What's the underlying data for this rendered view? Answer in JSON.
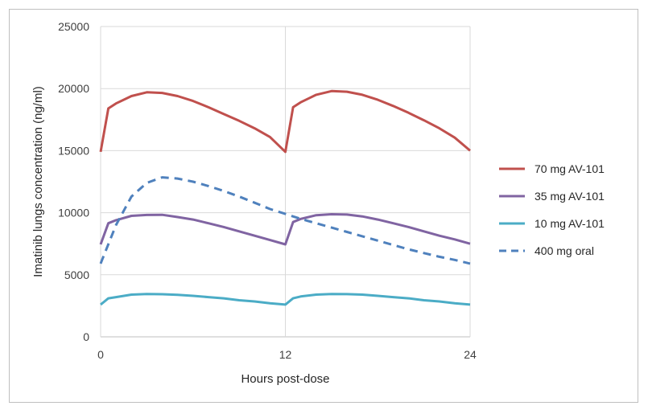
{
  "chart_data": {
    "type": "line",
    "title": "",
    "xlabel": "Hours post-dose",
    "ylabel": "Imatinib lungs concentration (ng/ml)",
    "xlim": [
      0,
      24
    ],
    "ylim": [
      0,
      25000
    ],
    "x_ticks": [
      "0",
      "12",
      "24"
    ],
    "y_ticks": [
      "0",
      "5000",
      "10000",
      "15000",
      "20000",
      "25000"
    ],
    "grid": true,
    "legend_position": "right",
    "series": [
      {
        "name": "70 mg AV-101",
        "color": "#c0504d",
        "dash": "solid",
        "points": [
          [
            0,
            14900
          ],
          [
            0.5,
            18400
          ],
          [
            1,
            18800
          ],
          [
            2,
            19400
          ],
          [
            3,
            19700
          ],
          [
            4,
            19650
          ],
          [
            5,
            19400
          ],
          [
            6,
            19000
          ],
          [
            7,
            18500
          ],
          [
            8,
            17950
          ],
          [
            9,
            17400
          ],
          [
            10,
            16800
          ],
          [
            11,
            16100
          ],
          [
            12,
            14900
          ],
          [
            12.5,
            18500
          ],
          [
            13,
            18900
          ],
          [
            14,
            19500
          ],
          [
            15,
            19800
          ],
          [
            16,
            19750
          ],
          [
            17,
            19500
          ],
          [
            18,
            19100
          ],
          [
            19,
            18600
          ],
          [
            20,
            18050
          ],
          [
            21,
            17450
          ],
          [
            22,
            16800
          ],
          [
            23,
            16050
          ],
          [
            24,
            15000
          ]
        ]
      },
      {
        "name": "35 mg AV-101",
        "color": "#8064a2",
        "dash": "solid",
        "points": [
          [
            0,
            7450
          ],
          [
            0.5,
            9150
          ],
          [
            1,
            9400
          ],
          [
            2,
            9750
          ],
          [
            3,
            9820
          ],
          [
            4,
            9830
          ],
          [
            5,
            9650
          ],
          [
            6,
            9450
          ],
          [
            7,
            9150
          ],
          [
            8,
            8850
          ],
          [
            9,
            8500
          ],
          [
            10,
            8150
          ],
          [
            11,
            7800
          ],
          [
            12,
            7450
          ],
          [
            12.5,
            9250
          ],
          [
            13,
            9500
          ],
          [
            14,
            9800
          ],
          [
            15,
            9880
          ],
          [
            16,
            9850
          ],
          [
            17,
            9700
          ],
          [
            18,
            9450
          ],
          [
            19,
            9150
          ],
          [
            20,
            8850
          ],
          [
            21,
            8500
          ],
          [
            22,
            8150
          ],
          [
            23,
            7850
          ],
          [
            24,
            7500
          ]
        ]
      },
      {
        "name": "10 mg AV-101",
        "color": "#4bacc6",
        "dash": "solid",
        "points": [
          [
            0,
            2600
          ],
          [
            0.5,
            3100
          ],
          [
            1,
            3200
          ],
          [
            2,
            3400
          ],
          [
            3,
            3450
          ],
          [
            4,
            3430
          ],
          [
            5,
            3380
          ],
          [
            6,
            3300
          ],
          [
            7,
            3200
          ],
          [
            8,
            3100
          ],
          [
            9,
            2950
          ],
          [
            10,
            2850
          ],
          [
            11,
            2700
          ],
          [
            12,
            2600
          ],
          [
            12.5,
            3100
          ],
          [
            13,
            3250
          ],
          [
            14,
            3400
          ],
          [
            15,
            3450
          ],
          [
            16,
            3440
          ],
          [
            17,
            3400
          ],
          [
            18,
            3300
          ],
          [
            19,
            3200
          ],
          [
            20,
            3100
          ],
          [
            21,
            2950
          ],
          [
            22,
            2850
          ],
          [
            23,
            2700
          ],
          [
            24,
            2600
          ]
        ]
      },
      {
        "name": "400 mg oral",
        "color": "#4f81bd",
        "dash": "dashed",
        "points": [
          [
            0,
            5900
          ],
          [
            1,
            9000
          ],
          [
            2,
            11300
          ],
          [
            3,
            12400
          ],
          [
            4,
            12850
          ],
          [
            5,
            12750
          ],
          [
            6,
            12500
          ],
          [
            7,
            12150
          ],
          [
            8,
            11750
          ],
          [
            9,
            11300
          ],
          [
            10,
            10800
          ],
          [
            11,
            10300
          ],
          [
            12,
            9900
          ],
          [
            13,
            9500
          ],
          [
            14,
            9150
          ],
          [
            15,
            8800
          ],
          [
            16,
            8450
          ],
          [
            17,
            8100
          ],
          [
            18,
            7750
          ],
          [
            19,
            7400
          ],
          [
            20,
            7050
          ],
          [
            21,
            6750
          ],
          [
            22,
            6450
          ],
          [
            23,
            6200
          ],
          [
            24,
            5900
          ]
        ]
      }
    ]
  }
}
